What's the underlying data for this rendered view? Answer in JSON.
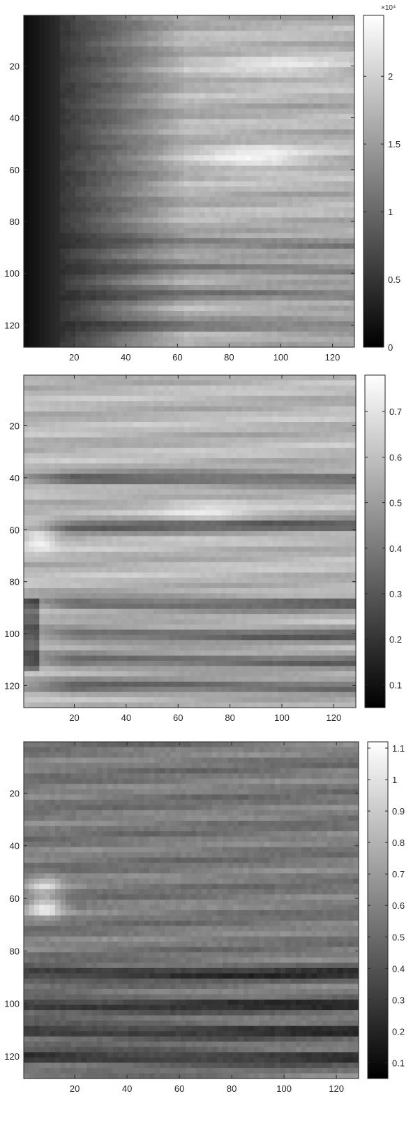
{
  "chart_data": [
    {
      "type": "heatmap",
      "colormap": "gray",
      "title": "",
      "xlabel": "",
      "ylabel": "",
      "xlim": [
        0.5,
        128.5
      ],
      "ylim": [
        0.5,
        128.5
      ],
      "y_direction": "reversed",
      "x_ticks": [
        20,
        40,
        60,
        80,
        100,
        120
      ],
      "y_ticks": [
        20,
        40,
        60,
        80,
        100,
        120
      ],
      "x_tick_labels": [
        "20",
        "40",
        "60",
        "80",
        "100",
        "120"
      ],
      "y_tick_labels": [
        "20",
        "40",
        "60",
        "80",
        "100",
        "120"
      ],
      "colorbar": {
        "limits": [
          0,
          2.45
        ],
        "ticks": [
          0,
          0.5,
          1,
          1.5,
          2
        ],
        "tick_labels": [
          "0",
          "0.5",
          "1",
          "1.5",
          "2"
        ],
        "exponent_label": "×10⁴"
      },
      "pattern": "dark left band (columns 1-15) brightening to the right; bright horizontal streaks, brightest blob near row 55 column 90; dark horizontal bands near rows 88, 98, 108, 120"
    },
    {
      "type": "heatmap",
      "colormap": "gray",
      "title": "",
      "xlabel": "",
      "ylabel": "",
      "xlim": [
        0.5,
        128.5
      ],
      "ylim": [
        0.5,
        128.5
      ],
      "y_direction": "reversed",
      "x_ticks": [
        20,
        40,
        60,
        80,
        100,
        120
      ],
      "y_ticks": [
        20,
        40,
        60,
        80,
        100,
        120
      ],
      "x_tick_labels": [
        "20",
        "40",
        "60",
        "80",
        "100",
        "120"
      ],
      "y_tick_labels": [
        "20",
        "40",
        "60",
        "80",
        "100",
        "120"
      ],
      "colorbar": {
        "limits": [
          0.05,
          0.78
        ],
        "ticks": [
          0.1,
          0.2,
          0.3,
          0.4,
          0.5,
          0.6,
          0.7
        ],
        "tick_labels": [
          "0.1",
          "0.2",
          "0.3",
          "0.4",
          "0.5",
          "0.6",
          "0.7"
        ],
        "exponent_label": ""
      },
      "pattern": "light gray overall with bright blob near row 63 column 5; dark horizontal streaks near rows 40, 58, 88, 100, 110, 120"
    },
    {
      "type": "heatmap",
      "colormap": "gray",
      "title": "",
      "xlabel": "",
      "ylabel": "",
      "xlim": [
        0.5,
        128.5
      ],
      "ylim": [
        0.5,
        128.5
      ],
      "y_direction": "reversed",
      "x_ticks": [
        20,
        40,
        60,
        80,
        100,
        120
      ],
      "y_ticks": [
        20,
        40,
        60,
        80,
        100,
        120
      ],
      "x_tick_labels": [
        "20",
        "40",
        "60",
        "80",
        "100",
        "120"
      ],
      "y_tick_labels": [
        "20",
        "40",
        "60",
        "80",
        "100",
        "120"
      ],
      "colorbar": {
        "limits": [
          0.05,
          1.12
        ],
        "ticks": [
          0.1,
          0.2,
          0.3,
          0.4,
          0.5,
          0.6,
          0.7,
          0.8,
          0.9,
          1,
          1.1
        ],
        "tick_labels": [
          "0.1",
          "0.2",
          "0.3",
          "0.4",
          "0.5",
          "0.6",
          "0.7",
          "0.8",
          "0.9",
          "1",
          "1.1"
        ],
        "exponent_label": ""
      },
      "pattern": "mid gray overall with bright blob near rows 55-64 column 8; dark horizontal streaks near rows 88, 100, 110, 120"
    }
  ]
}
